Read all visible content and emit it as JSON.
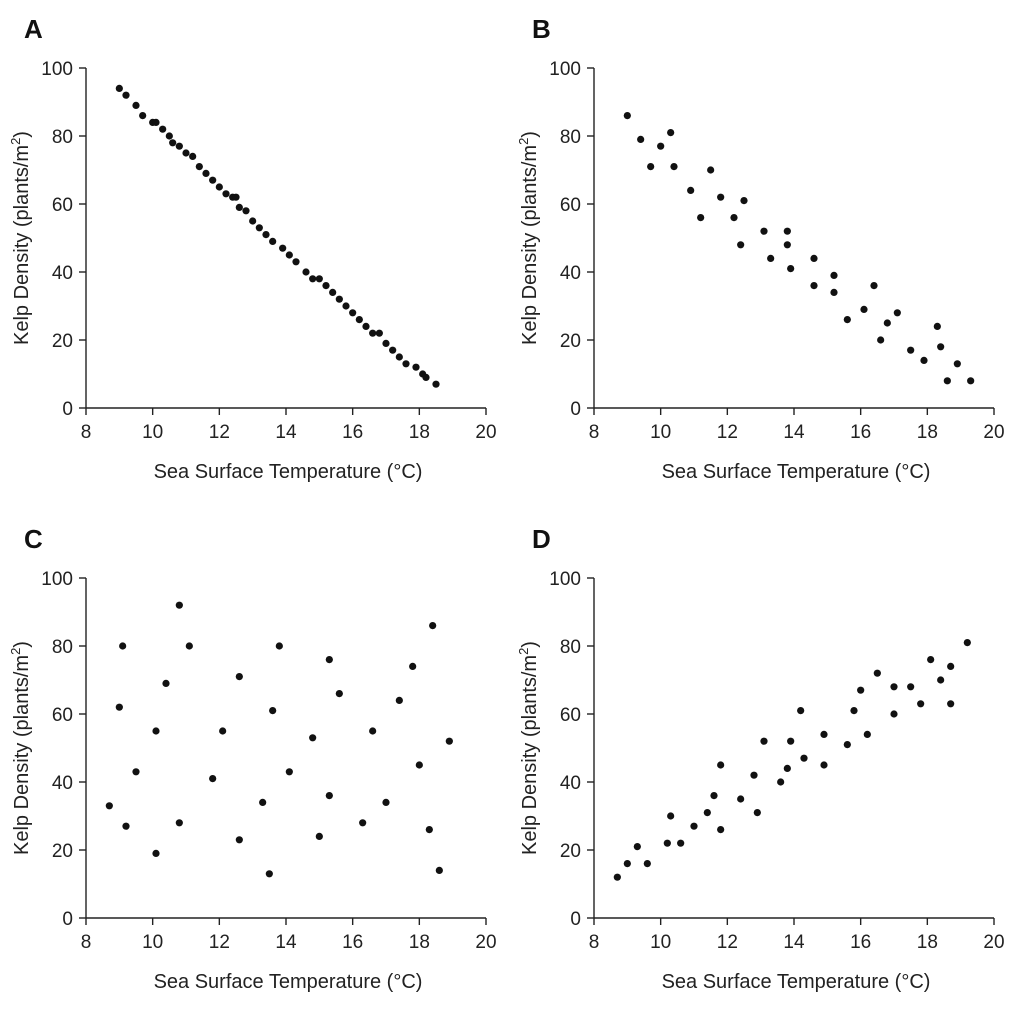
{
  "chart_data": [
    {
      "type": "scatter",
      "panel_label": "A",
      "xlabel": "Sea Surface Temperature (°C)",
      "ylabel_main": "Kelp Density (plants/m",
      "ylabel_sup": "2",
      "ylabel_end": ")",
      "xlim": [
        8,
        20
      ],
      "ylim": [
        0,
        100
      ],
      "xticks": [
        8,
        10,
        12,
        14,
        16,
        18,
        20
      ],
      "yticks": [
        0,
        20,
        40,
        60,
        80,
        100
      ],
      "grid": false,
      "points": [
        [
          9.0,
          94
        ],
        [
          9.2,
          92
        ],
        [
          9.5,
          89
        ],
        [
          9.7,
          86
        ],
        [
          10.0,
          84
        ],
        [
          10.1,
          84
        ],
        [
          10.3,
          82
        ],
        [
          10.5,
          80
        ],
        [
          10.6,
          78
        ],
        [
          10.8,
          77
        ],
        [
          11.0,
          75
        ],
        [
          11.2,
          74
        ],
        [
          11.4,
          71
        ],
        [
          11.6,
          69
        ],
        [
          11.8,
          67
        ],
        [
          12.0,
          65
        ],
        [
          12.2,
          63
        ],
        [
          12.4,
          62
        ],
        [
          12.5,
          62
        ],
        [
          12.6,
          59
        ],
        [
          12.8,
          58
        ],
        [
          13.0,
          55
        ],
        [
          13.2,
          53
        ],
        [
          13.4,
          51
        ],
        [
          13.6,
          49
        ],
        [
          13.9,
          47
        ],
        [
          14.1,
          45
        ],
        [
          14.3,
          43
        ],
        [
          14.6,
          40
        ],
        [
          14.8,
          38
        ],
        [
          15.0,
          38
        ],
        [
          15.2,
          36
        ],
        [
          15.4,
          34
        ],
        [
          15.6,
          32
        ],
        [
          15.8,
          30
        ],
        [
          16.0,
          28
        ],
        [
          16.2,
          26
        ],
        [
          16.4,
          24
        ],
        [
          16.6,
          22
        ],
        [
          16.8,
          22
        ],
        [
          17.0,
          19
        ],
        [
          17.2,
          17
        ],
        [
          17.4,
          15
        ],
        [
          17.6,
          13
        ],
        [
          17.9,
          12
        ],
        [
          18.1,
          10
        ],
        [
          18.2,
          9
        ],
        [
          18.5,
          7
        ]
      ]
    },
    {
      "type": "scatter",
      "panel_label": "B",
      "xlabel": "Sea Surface Temperature (°C)",
      "ylabel_main": "Kelp Density (plants/m",
      "ylabel_sup": "2",
      "ylabel_end": ")",
      "xlim": [
        8,
        20
      ],
      "ylim": [
        0,
        100
      ],
      "xticks": [
        8,
        10,
        12,
        14,
        16,
        18,
        20
      ],
      "yticks": [
        0,
        20,
        40,
        60,
        80,
        100
      ],
      "grid": false,
      "points": [
        [
          9.0,
          86
        ],
        [
          9.4,
          79
        ],
        [
          9.7,
          71
        ],
        [
          10.0,
          77
        ],
        [
          10.3,
          81
        ],
        [
          10.4,
          71
        ],
        [
          10.9,
          64
        ],
        [
          11.2,
          56
        ],
        [
          11.5,
          70
        ],
        [
          11.8,
          62
        ],
        [
          12.2,
          56
        ],
        [
          12.4,
          48
        ],
        [
          12.5,
          61
        ],
        [
          13.1,
          52
        ],
        [
          13.3,
          44
        ],
        [
          13.8,
          48
        ],
        [
          13.8,
          52
        ],
        [
          13.9,
          41
        ],
        [
          14.6,
          44
        ],
        [
          14.6,
          36
        ],
        [
          15.2,
          39
        ],
        [
          15.2,
          34
        ],
        [
          15.6,
          26
        ],
        [
          16.1,
          29
        ],
        [
          16.4,
          36
        ],
        [
          16.6,
          20
        ],
        [
          16.8,
          25
        ],
        [
          17.1,
          28
        ],
        [
          17.5,
          17
        ],
        [
          17.9,
          14
        ],
        [
          18.3,
          24
        ],
        [
          18.4,
          18
        ],
        [
          18.6,
          8
        ],
        [
          18.9,
          13
        ],
        [
          19.3,
          8
        ]
      ]
    },
    {
      "type": "scatter",
      "panel_label": "C",
      "xlabel": "Sea Surface Temperature (°C)",
      "ylabel_main": "Kelp Density (plants/m",
      "ylabel_sup": "2",
      "ylabel_end": ")",
      "xlim": [
        8,
        20
      ],
      "ylim": [
        0,
        100
      ],
      "xticks": [
        8,
        10,
        12,
        14,
        16,
        18,
        20
      ],
      "yticks": [
        0,
        20,
        40,
        60,
        80,
        100
      ],
      "grid": false,
      "points": [
        [
          8.7,
          33
        ],
        [
          9.0,
          62
        ],
        [
          9.1,
          80
        ],
        [
          9.2,
          27
        ],
        [
          9.5,
          43
        ],
        [
          10.1,
          55
        ],
        [
          10.1,
          19
        ],
        [
          10.4,
          69
        ],
        [
          10.8,
          92
        ],
        [
          10.8,
          28
        ],
        [
          11.1,
          80
        ],
        [
          11.8,
          41
        ],
        [
          12.1,
          55
        ],
        [
          12.6,
          71
        ],
        [
          12.6,
          23
        ],
        [
          13.3,
          34
        ],
        [
          13.5,
          13
        ],
        [
          13.6,
          61
        ],
        [
          13.8,
          80
        ],
        [
          14.1,
          43
        ],
        [
          14.8,
          53
        ],
        [
          15.0,
          24
        ],
        [
          15.3,
          76
        ],
        [
          15.3,
          36
        ],
        [
          15.6,
          66
        ],
        [
          16.3,
          28
        ],
        [
          16.6,
          55
        ],
        [
          17.0,
          34
        ],
        [
          17.4,
          64
        ],
        [
          17.8,
          74
        ],
        [
          18.0,
          45
        ],
        [
          18.3,
          26
        ],
        [
          18.4,
          86
        ],
        [
          18.6,
          14
        ],
        [
          18.9,
          52
        ]
      ]
    },
    {
      "type": "scatter",
      "panel_label": "D",
      "xlabel": "Sea Surface Temperature (°C)",
      "ylabel_main": "Kelp Density (plants/m",
      "ylabel_sup": "2",
      "ylabel_end": ")",
      "xlim": [
        8,
        20
      ],
      "ylim": [
        0,
        100
      ],
      "xticks": [
        8,
        10,
        12,
        14,
        16,
        18,
        20
      ],
      "yticks": [
        0,
        20,
        40,
        60,
        80,
        100
      ],
      "grid": false,
      "points": [
        [
          8.7,
          12
        ],
        [
          9.0,
          16
        ],
        [
          9.3,
          21
        ],
        [
          9.6,
          16
        ],
        [
          10.2,
          22
        ],
        [
          10.3,
          30
        ],
        [
          10.6,
          22
        ],
        [
          11.0,
          27
        ],
        [
          11.4,
          31
        ],
        [
          11.6,
          36
        ],
        [
          11.8,
          26
        ],
        [
          11.8,
          45
        ],
        [
          12.4,
          35
        ],
        [
          12.8,
          42
        ],
        [
          12.9,
          31
        ],
        [
          13.1,
          52
        ],
        [
          13.6,
          40
        ],
        [
          13.8,
          44
        ],
        [
          13.9,
          52
        ],
        [
          14.2,
          61
        ],
        [
          14.3,
          47
        ],
        [
          14.9,
          54
        ],
        [
          14.9,
          45
        ],
        [
          15.6,
          51
        ],
        [
          15.8,
          61
        ],
        [
          16.0,
          67
        ],
        [
          16.2,
          54
        ],
        [
          16.5,
          72
        ],
        [
          17.0,
          68
        ],
        [
          17.0,
          60
        ],
        [
          17.5,
          68
        ],
        [
          17.8,
          63
        ],
        [
          18.1,
          76
        ],
        [
          18.4,
          70
        ],
        [
          18.7,
          74
        ],
        [
          18.7,
          63
        ],
        [
          19.2,
          81
        ]
      ]
    }
  ]
}
